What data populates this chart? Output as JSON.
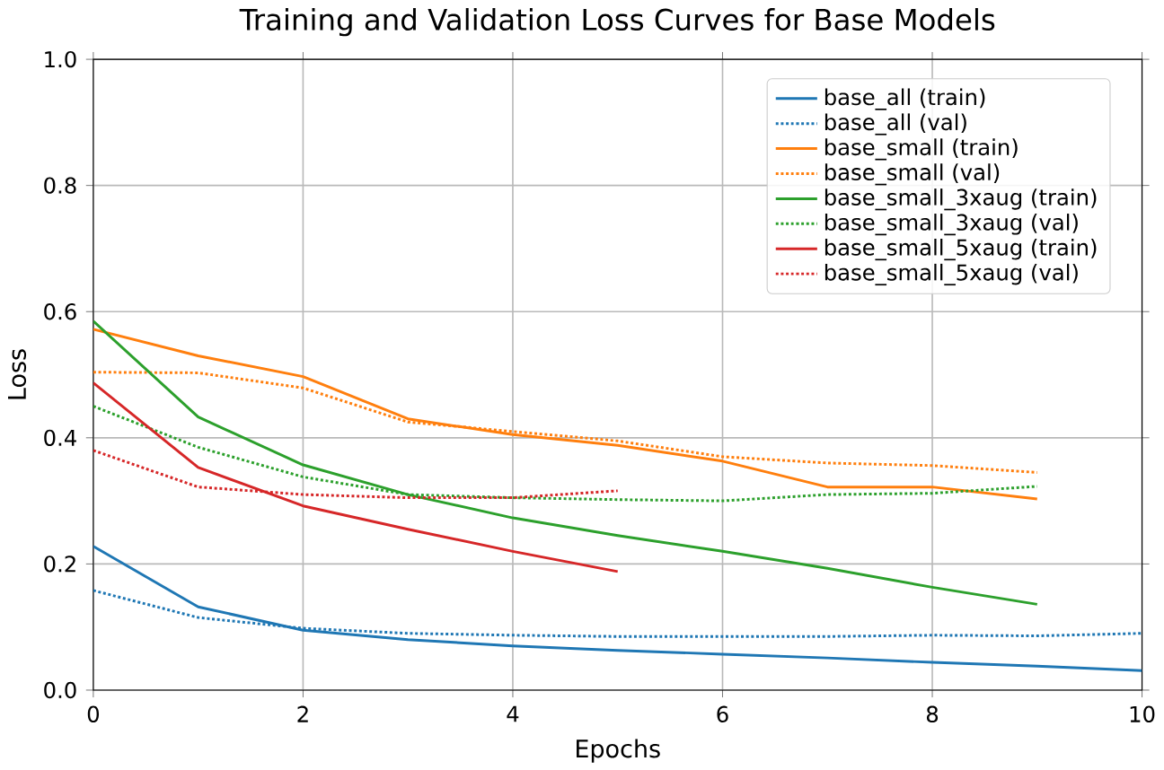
{
  "chart_data": {
    "type": "line",
    "title": "Training and Validation Loss Curves for Base Models",
    "xlabel": "Epochs",
    "ylabel": "Loss",
    "xlim": [
      0,
      10
    ],
    "ylim": [
      0,
      1
    ],
    "xticks": [
      0,
      2,
      4,
      6,
      8,
      10
    ],
    "yticks": [
      {
        "value": 0,
        "label": "0.0"
      },
      {
        "value": 0.2,
        "label": "0.2"
      },
      {
        "value": 0.4,
        "label": "0.4"
      },
      {
        "value": 0.6,
        "label": "0.6"
      },
      {
        "value": 0.8,
        "label": "0.8"
      },
      {
        "value": 1,
        "label": "1.0"
      }
    ],
    "grid": true,
    "legend": "top right",
    "marker": "none",
    "series": [
      {
        "name": "base_all (train)",
        "color": "#1f77b4",
        "line_style": "solid",
        "x": [
          0,
          1,
          2,
          3,
          4,
          5,
          6,
          7,
          8,
          9,
          10
        ],
        "values": [
          0.228,
          0.132,
          0.095,
          0.08,
          0.07,
          0.063,
          0.057,
          0.051,
          0.044,
          0.038,
          0.031
        ]
      },
      {
        "name": "base_all (val)",
        "color": "#1f77b4",
        "line_style": "dotted",
        "x": [
          0,
          1,
          2,
          3,
          4,
          5,
          6,
          7,
          8,
          9,
          10
        ],
        "values": [
          0.158,
          0.115,
          0.098,
          0.09,
          0.087,
          0.085,
          0.085,
          0.085,
          0.087,
          0.086,
          0.09
        ]
      },
      {
        "name": "base_small (train)",
        "color": "#ff7f0e",
        "line_style": "solid",
        "x": [
          0,
          1,
          2,
          3,
          4,
          5,
          6,
          7,
          8,
          9
        ],
        "values": [
          0.572,
          0.53,
          0.497,
          0.43,
          0.405,
          0.388,
          0.363,
          0.322,
          0.322,
          0.303
        ]
      },
      {
        "name": "base_small (val)",
        "color": "#ff7f0e",
        "line_style": "dotted",
        "x": [
          0,
          1,
          2,
          3,
          4,
          5,
          6,
          7,
          8,
          9
        ],
        "values": [
          0.504,
          0.503,
          0.479,
          0.425,
          0.41,
          0.395,
          0.37,
          0.36,
          0.356,
          0.345
        ]
      },
      {
        "name": "base_small_3xaug (train)",
        "color": "#2ca02c",
        "line_style": "solid",
        "x": [
          0,
          1,
          2,
          3,
          4,
          5,
          6,
          7,
          8,
          9
        ],
        "values": [
          0.585,
          0.433,
          0.357,
          0.31,
          0.273,
          0.245,
          0.22,
          0.193,
          0.163,
          0.136
        ]
      },
      {
        "name": "base_small_3xaug (val)",
        "color": "#2ca02c",
        "line_style": "dotted",
        "x": [
          0,
          1,
          2,
          3,
          4,
          5,
          6,
          7,
          8,
          9
        ],
        "values": [
          0.45,
          0.385,
          0.338,
          0.31,
          0.305,
          0.302,
          0.3,
          0.31,
          0.312,
          0.323
        ]
      },
      {
        "name": "base_small_5xaug (train)",
        "color": "#d62728",
        "line_style": "solid",
        "x": [
          0,
          1,
          2,
          3,
          4,
          5
        ],
        "values": [
          0.487,
          0.353,
          0.292,
          0.255,
          0.22,
          0.188
        ]
      },
      {
        "name": "base_small_5xaug (val)",
        "color": "#d62728",
        "line_style": "dotted",
        "x": [
          0,
          1,
          2,
          3,
          4,
          5
        ],
        "values": [
          0.38,
          0.322,
          0.31,
          0.305,
          0.305,
          0.316
        ]
      }
    ]
  }
}
